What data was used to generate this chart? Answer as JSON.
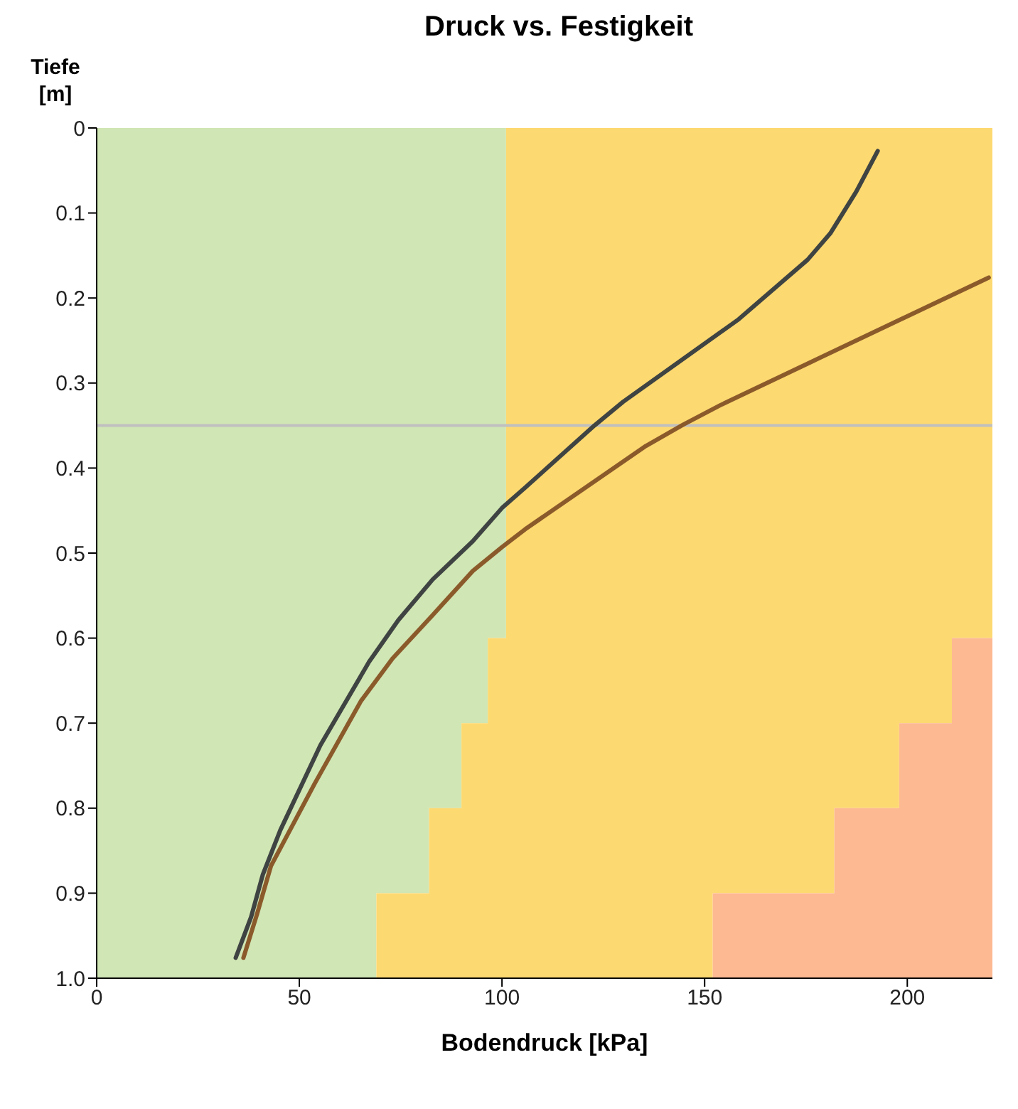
{
  "chart_data": {
    "type": "area",
    "title": "Druck vs. Festigkeit",
    "xlabel": "Bodendruck [kPa]",
    "ylabel": "Tiefe [m]",
    "orientation": "horizontal",
    "stacked": true,
    "x": [
      0,
      0.6,
      0.6,
      0.7,
      0.7,
      0.8,
      0.8,
      0.9,
      0.9,
      1
    ],
    "series": [
      {
        "color": "#d0e6b4",
        "values": [
          101,
          101,
          96.5,
          96.5,
          90,
          90,
          82,
          82,
          69,
          69
        ]
      },
      {
        "color": "#fdd971",
        "values": [
          120,
          120,
          114.5,
          114.5,
          108,
          108,
          100,
          100,
          83,
          83
        ]
      },
      {
        "color": "#fdb992",
        "values": [
          0,
          0,
          10,
          10,
          23,
          23,
          39,
          39,
          69,
          69
        ]
      },
      {
        "type": "line",
        "color": "#3f4443",
        "x": [
          0.027,
          0.075,
          0.124,
          0.155,
          0.225,
          0.322,
          0.35,
          0.423,
          0.447,
          0.486,
          0.531,
          0.579,
          0.628,
          0.726,
          0.826,
          0.878,
          0.928,
          0.976
        ],
        "values": [
          192.7,
          187.4,
          181,
          175.4,
          158.4,
          129.9,
          122.8,
          105.7,
          100,
          92.8,
          82.9,
          74.4,
          67.2,
          55.2,
          45.3,
          41,
          38.1,
          34.3
        ]
      },
      {
        "type": "line",
        "color": "#8b5a2b",
        "x": [
          0.176,
          0.274,
          0.326,
          0.349,
          0.374,
          0.472,
          0.493,
          0.521,
          0.573,
          0.624,
          0.674,
          0.771,
          0.868,
          0.924,
          0.976
        ],
        "values": [
          220.1,
          176.8,
          153.9,
          144.7,
          135.5,
          105.7,
          100,
          92.8,
          82.9,
          73,
          65.2,
          53.8,
          43,
          39.6,
          36.2
        ]
      }
    ],
    "xlim": [
      0,
      221
    ],
    "xticks": [
      0,
      50,
      100,
      150,
      200
    ],
    "ylim": [
      1,
      0
    ],
    "yticks": [
      0,
      0.1,
      0.2,
      0.3,
      0.4,
      0.5,
      0.6,
      0.7,
      0.8,
      0.9,
      {
        "value": 1,
        "label": "1.0"
      }
    ],
    "ref_lines": [
      {
        "axis": "y",
        "value": 0.35,
        "color": "#c0c0c0"
      }
    ],
    "grid": false,
    "legend": false,
    "marker": "none",
    "line_style": "solid"
  }
}
